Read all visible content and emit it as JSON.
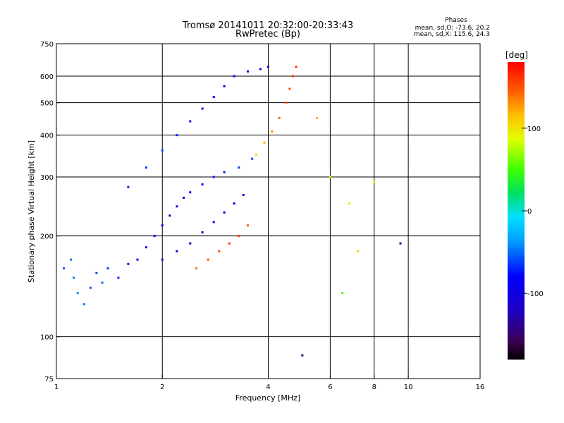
{
  "chart_data": {
    "type": "scatter",
    "title": "Tromsø 20141011 20:32:00-20:33:43",
    "subtitle": "RwPretec (Bp)",
    "xlabel": "Frequency [MHz]",
    "ylabel": "Stationary phase Virtual Height [km]",
    "x_scale": "log",
    "y_scale": "log",
    "xlim": [
      1,
      16
    ],
    "ylim": [
      75,
      750
    ],
    "x_ticks": [
      1,
      2,
      4,
      6,
      8,
      10,
      16
    ],
    "x_tick_labels": [
      "1",
      "2",
      "4",
      "6",
      "8",
      "10",
      "16"
    ],
    "y_ticks": [
      75,
      100,
      200,
      300,
      400,
      500,
      600,
      750
    ],
    "y_tick_labels": [
      "75",
      "100",
      "200",
      "300",
      "400",
      "500",
      "600",
      "750"
    ],
    "grid": true,
    "phases": {
      "heading": "Phases",
      "line_o": "mean, sd,O: -73.6, 20.2",
      "line_x": "mean, sd,X: 115.6, 24.3"
    },
    "colorbar": {
      "label": "[deg]",
      "ticks": [
        100,
        0,
        -100
      ],
      "tick_labels": [
        "100",
        "0",
        "-100"
      ],
      "range": [
        -180,
        180
      ],
      "colormap": "rainbow"
    },
    "series": [
      {
        "points": [
          [
            1.05,
            160,
            -55
          ],
          [
            1.1,
            170,
            -50
          ],
          [
            1.12,
            150,
            -45
          ],
          [
            1.15,
            135,
            -40
          ],
          [
            1.2,
            125,
            -45
          ],
          [
            1.25,
            140,
            -55
          ],
          [
            1.3,
            155,
            -60
          ],
          [
            1.35,
            145,
            -50
          ],
          [
            1.4,
            160,
            -65
          ],
          [
            1.5,
            150,
            -70
          ],
          [
            1.6,
            165,
            -75
          ],
          [
            1.7,
            170,
            -80
          ],
          [
            1.8,
            185,
            -85
          ],
          [
            1.9,
            200,
            -90
          ],
          [
            2.0,
            215,
            -95
          ],
          [
            2.1,
            230,
            -100
          ],
          [
            2.2,
            245,
            -95
          ],
          [
            2.3,
            260,
            -90
          ],
          [
            2.4,
            270,
            -85
          ],
          [
            2.6,
            285,
            -80
          ],
          [
            2.8,
            300,
            -75
          ],
          [
            3.0,
            310,
            -70
          ],
          [
            3.3,
            320,
            -65
          ],
          [
            3.6,
            340,
            -60
          ],
          [
            1.6,
            280,
            -70
          ],
          [
            1.8,
            320,
            -65
          ],
          [
            2.0,
            360,
            -60
          ],
          [
            2.2,
            400,
            -70
          ],
          [
            2.4,
            440,
            -75
          ],
          [
            2.6,
            480,
            -80
          ],
          [
            2.8,
            520,
            -85
          ],
          [
            3.0,
            560,
            -90
          ],
          [
            3.2,
            600,
            -95
          ],
          [
            3.5,
            620,
            -100
          ],
          [
            3.8,
            630,
            -105
          ],
          [
            4.0,
            640,
            -110
          ],
          [
            2.0,
            170,
            -120
          ],
          [
            2.2,
            180,
            -115
          ],
          [
            2.4,
            190,
            -110
          ],
          [
            2.6,
            205,
            -105
          ],
          [
            2.8,
            220,
            -100
          ],
          [
            3.0,
            235,
            -95
          ],
          [
            3.2,
            250,
            -90
          ],
          [
            3.4,
            265,
            -85
          ],
          [
            2.5,
            160,
            140
          ],
          [
            2.7,
            170,
            145
          ],
          [
            2.9,
            180,
            150
          ],
          [
            3.1,
            190,
            155
          ],
          [
            3.3,
            200,
            160
          ],
          [
            3.5,
            215,
            150
          ],
          [
            3.7,
            350,
            110
          ],
          [
            3.9,
            380,
            120
          ],
          [
            4.1,
            410,
            130
          ],
          [
            4.3,
            450,
            140
          ],
          [
            4.5,
            500,
            150
          ],
          [
            4.6,
            550,
            155
          ],
          [
            4.7,
            600,
            160
          ],
          [
            4.8,
            640,
            165
          ],
          [
            5.5,
            450,
            120
          ],
          [
            6.0,
            300,
            80
          ],
          [
            6.8,
            250,
            95
          ],
          [
            7.2,
            180,
            110
          ],
          [
            8.0,
            290,
            90
          ],
          [
            9.5,
            190,
            -140
          ],
          [
            6.5,
            135,
            50
          ],
          [
            5.0,
            88,
            -150
          ]
        ]
      }
    ]
  }
}
